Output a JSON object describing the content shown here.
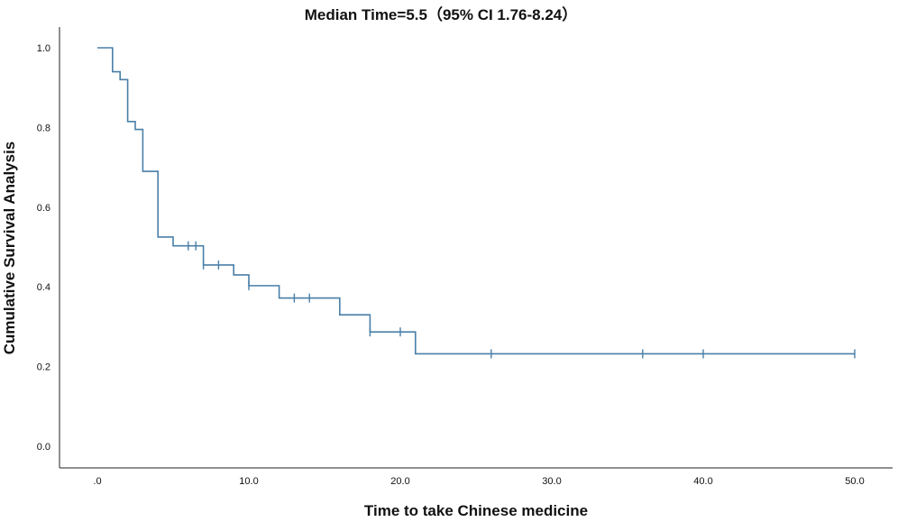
{
  "chart_data": {
    "type": "line",
    "title": "Median Time=5.5（95% CI 1.76-8.24）",
    "xlabel": "Time to take Chinese medicine",
    "ylabel": "Cumulative Survival Analysis",
    "xlim": [
      0,
      52
    ],
    "ylim": [
      0,
      1.0
    ],
    "x_ticks": [
      0,
      10,
      20,
      30,
      40,
      50
    ],
    "x_tick_labels": [
      ".0",
      "10.0",
      "20.0",
      "30.0",
      "40.0",
      "50.0"
    ],
    "y_ticks": [
      0,
      0.2,
      0.4,
      0.6,
      0.8,
      1.0
    ],
    "y_tick_labels": [
      "0.0",
      "0.2",
      "0.4",
      "0.6",
      "0.8",
      "1.0"
    ],
    "grid": false,
    "series": [
      {
        "name": "",
        "color": "#4a7fa8",
        "step_points": [
          {
            "x": 0,
            "y": 1.0
          },
          {
            "x": 1,
            "y": 0.94
          },
          {
            "x": 1.5,
            "y": 0.92
          },
          {
            "x": 2,
            "y": 0.815
          },
          {
            "x": 2.5,
            "y": 0.795
          },
          {
            "x": 3,
            "y": 0.69
          },
          {
            "x": 4,
            "y": 0.525
          },
          {
            "x": 5,
            "y": 0.503
          },
          {
            "x": 7,
            "y": 0.455
          },
          {
            "x": 9,
            "y": 0.43
          },
          {
            "x": 10,
            "y": 0.403
          },
          {
            "x": 12,
            "y": 0.372
          },
          {
            "x": 16,
            "y": 0.33
          },
          {
            "x": 18,
            "y": 0.287
          },
          {
            "x": 21,
            "y": 0.232
          }
        ],
        "end_x": 50,
        "censored": [
          {
            "x": 6,
            "y": 0.503
          },
          {
            "x": 6.5,
            "y": 0.503
          },
          {
            "x": 7,
            "y": 0.455
          },
          {
            "x": 8,
            "y": 0.455
          },
          {
            "x": 10,
            "y": 0.403
          },
          {
            "x": 13,
            "y": 0.372
          },
          {
            "x": 14,
            "y": 0.372
          },
          {
            "x": 18,
            "y": 0.287
          },
          {
            "x": 20,
            "y": 0.287
          },
          {
            "x": 26,
            "y": 0.232
          },
          {
            "x": 36,
            "y": 0.232
          },
          {
            "x": 40,
            "y": 0.232
          },
          {
            "x": 50,
            "y": 0.232
          }
        ]
      }
    ]
  }
}
